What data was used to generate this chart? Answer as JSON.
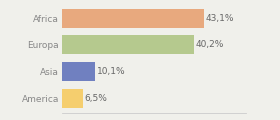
{
  "categories": [
    "Africa",
    "Europa",
    "Asia",
    "America"
  ],
  "values": [
    43.1,
    40.2,
    10.1,
    6.5
  ],
  "labels": [
    "43,1%",
    "40,2%",
    "10,1%",
    "6,5%"
  ],
  "bar_colors": [
    "#e8a97e",
    "#b5c98e",
    "#7080c0",
    "#f5ce6e"
  ],
  "background_color": "#f0f0eb",
  "xlim": [
    0,
    56
  ],
  "label_fontsize": 6.5,
  "tick_fontsize": 6.5,
  "bar_height": 0.72
}
